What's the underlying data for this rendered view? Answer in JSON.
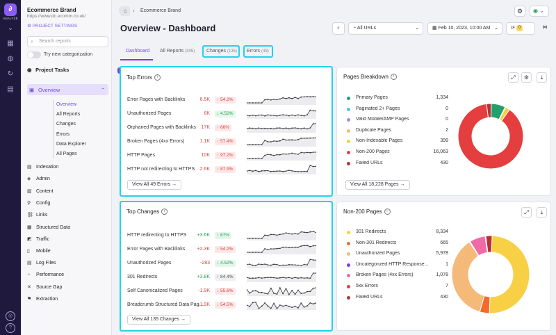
{
  "rail": {
    "label": "ANALYZE"
  },
  "project": {
    "name": "Ecommerce Brand",
    "url": "https://www.dc.ecomm.co.uk/",
    "settings": "PROJECT SETTINGS"
  },
  "sidebar": {
    "search_placeholder": "Search reports",
    "toggle_label": "Try new categorization",
    "tasks_label": "Project Tasks",
    "tasks_count": "5",
    "overview_label": "Overview",
    "sub_items": [
      "Overview",
      "All Reports",
      "Changes",
      "Errors",
      "Data Explorer",
      "All Pages"
    ],
    "items": [
      "Indexation",
      "Admin",
      "Content",
      "Config",
      "Links",
      "Structured Data",
      "Traffic",
      "Mobile",
      "Log Files",
      "Performance",
      "Source Gap",
      "Extraction"
    ]
  },
  "breadcrumb": {
    "item": "Ecommerce Brand"
  },
  "page": {
    "title": "Overview - Dashboard"
  },
  "toolbar": {
    "url_filter": "All URLs",
    "date": "Feb 10, 2023, 10:00 AM",
    "sync_count": "0"
  },
  "tabs": [
    {
      "label": "Dashboard"
    },
    {
      "label": "All Reports",
      "count": "(305)"
    },
    {
      "label": "Changes",
      "count": "(135)"
    },
    {
      "label": "Errors",
      "count": "(49)"
    }
  ],
  "top_errors": {
    "title": "Top Errors",
    "rows": [
      {
        "name": "Error Pages with Backlinks",
        "value": "6.5K",
        "change": "↑ 54.2%",
        "trend": "bad"
      },
      {
        "name": "Unauthorized Pages",
        "value": "6K",
        "change": "↓ 4.52%",
        "trend": "good"
      },
      {
        "name": "Orphaned Pages with Backlinks",
        "value": "17K",
        "change": "↑ 66%",
        "trend": "bad"
      },
      {
        "name": "Broken Pages (4xx Errors)",
        "value": "1.1K",
        "change": "↑ 57.4%",
        "trend": "bad"
      },
      {
        "name": "HTTP Pages",
        "value": "10K",
        "change": "↑ 97.2%",
        "trend": "bad"
      },
      {
        "name": "HTTP not redirecting to HTTPS",
        "value": "2.6K",
        "change": "↑ 87.9%",
        "trend": "bad"
      }
    ],
    "view_all": "View All 49 Errors"
  },
  "top_changes": {
    "title": "Top Changes",
    "rows": [
      {
        "name": "HTTP redirecting to HTTPS",
        "value": "+3.6K",
        "change": "↑ 67%",
        "trend": "good"
      },
      {
        "name": "Error Pages with Backlinks",
        "value": "+2.3K",
        "change": "↑ 54.2%",
        "trend": "bad"
      },
      {
        "name": "Unauthorized Pages",
        "value": "-283",
        "change": "↓ 4.52%",
        "trend": "good"
      },
      {
        "name": "301 Redirects",
        "value": "+3.8K",
        "change": "↑ 84.4%",
        "trend": "neutral"
      },
      {
        "name": "Self Canonicalized Pages",
        "value": "-1.9K",
        "change": "↓ 55.6%",
        "trend": "bad"
      },
      {
        "name": "Breadcrumb Structured Data Pag...",
        "value": "-1.9K",
        "change": "↓ 54.5%",
        "trend": "bad"
      }
    ],
    "view_all": "View All 135 Changes"
  },
  "pages_breakdown": {
    "title": "Pages Breakdown",
    "view_all": "View All 18,228 Pages",
    "items": [
      {
        "label": "Primary Pages",
        "value": "1,334",
        "n": 1334,
        "color": "#22a06b"
      },
      {
        "label": "Paginated 2+ Pages",
        "value": "0",
        "n": 0,
        "color": "#4fc3e8"
      },
      {
        "label": "Valid Mobile/AMP Pages",
        "value": "0",
        "n": 0,
        "color": "#a78bda"
      },
      {
        "label": "Duplicate Pages",
        "value": "2",
        "n": 2,
        "color": "#f5b97a"
      },
      {
        "label": "Non-Indexable Pages",
        "value": "399",
        "n": 399,
        "color": "#f4d03f"
      },
      {
        "label": "Non-200 Pages",
        "value": "16,063",
        "n": 16063,
        "color": "#e53e3e"
      },
      {
        "label": "Failed URLs",
        "value": "430",
        "n": 430,
        "color": "#b83232"
      }
    ]
  },
  "non200": {
    "title": "Non-200 Pages",
    "items": [
      {
        "label": "301 Redirects",
        "value": "8,334",
        "n": 8334,
        "color": "#f7d046"
      },
      {
        "label": "Non-301 Redirects",
        "value": "665",
        "n": 665,
        "color": "#f26b2b"
      },
      {
        "label": "Unauthorized Pages",
        "value": "5,978",
        "n": 5978,
        "color": "#f5b97a"
      },
      {
        "label": "Uncategorized HTTP Response...",
        "value": "1",
        "n": 1,
        "color": "#7c3aed"
      },
      {
        "label": "Broken Pages (4xx Errors)",
        "value": "1,078",
        "n": 1078,
        "color": "#f06aa6"
      },
      {
        "label": "5xx Errors",
        "value": "7",
        "n": 7,
        "color": "#e53e3e"
      },
      {
        "label": "Failed URLs",
        "value": "430",
        "n": 430,
        "color": "#b83232"
      }
    ]
  }
}
